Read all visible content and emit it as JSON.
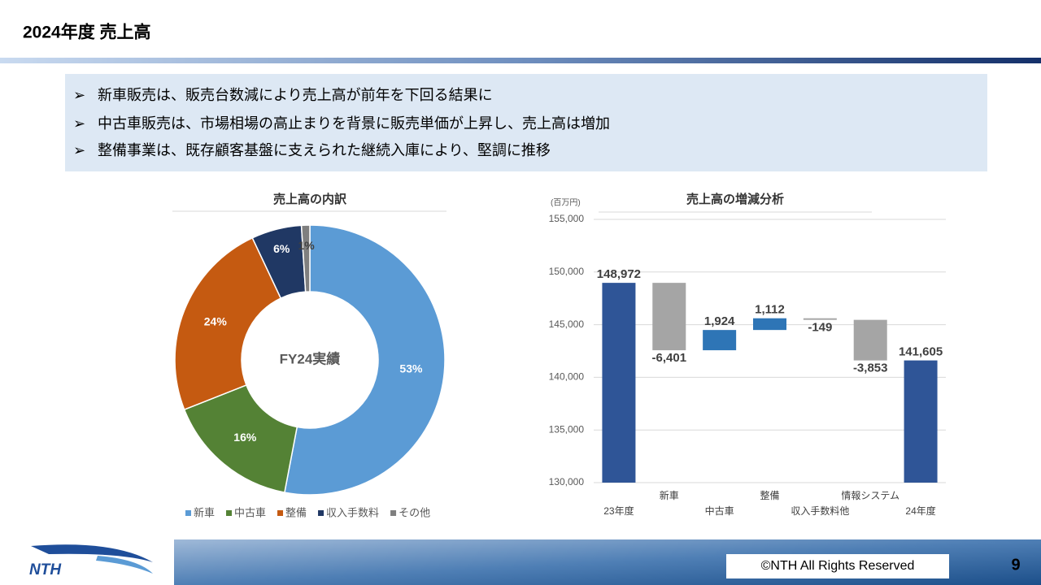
{
  "header": {
    "title": "2024年度 売上高"
  },
  "bullets": [
    "新車販売は、販売台数減により売上高が前年を下回る結果に",
    "中古車販売は、市場相場の高止まりを背景に販売単価が上昇し、売上高は増加",
    "整備事業は、既存顧客基盤に支えられた継続入庫により、堅調に推移"
  ],
  "chart_data": [
    {
      "type": "pie",
      "title": "売上高の内訳",
      "center_label": "FY24実績",
      "categories": [
        "新車",
        "中古車",
        "整備",
        "収入手数料",
        "その他"
      ],
      "values": [
        53,
        16,
        24,
        6,
        1
      ],
      "value_labels": [
        "53%",
        "16%",
        "24%",
        "6%",
        "1%"
      ],
      "colors": [
        "#5b9bd5",
        "#548235",
        "#c55a11",
        "#203864",
        "#7f7f7f"
      ],
      "legend": "bottom"
    },
    {
      "type": "waterfall",
      "title": "売上高の増減分析",
      "unit": "(百万円)",
      "categories": [
        "23年度",
        "新車",
        "中古車",
        "整備",
        "収入手数料他",
        "情報システム",
        "24年度"
      ],
      "values": [
        148972,
        -6401,
        1924,
        1112,
        -149,
        -3853,
        141605
      ],
      "value_labels": [
        "148,972",
        "-6,401",
        "1,924",
        "1,112",
        "-149",
        "-3,853",
        "141,605"
      ],
      "colors": [
        "#2f5597",
        "#a5a5a5",
        "#2e75b6",
        "#2e75b6",
        "#a5a5a5",
        "#a5a5a5",
        "#2f5597"
      ],
      "ylim": [
        130000,
        155000
      ],
      "yticks": [
        {
          "value": 130000,
          "label": "130,000"
        },
        {
          "value": 135000,
          "label": "135,000"
        },
        {
          "value": 140000,
          "label": "140,000"
        },
        {
          "value": 145000,
          "label": "145,000"
        },
        {
          "value": 150000,
          "label": "150,000"
        },
        {
          "value": 155000,
          "label": "155,000"
        }
      ],
      "grid": true
    }
  ],
  "footer": {
    "logo": "NTH",
    "copyright": "©NTH All Rights Reserved",
    "page": "9"
  }
}
